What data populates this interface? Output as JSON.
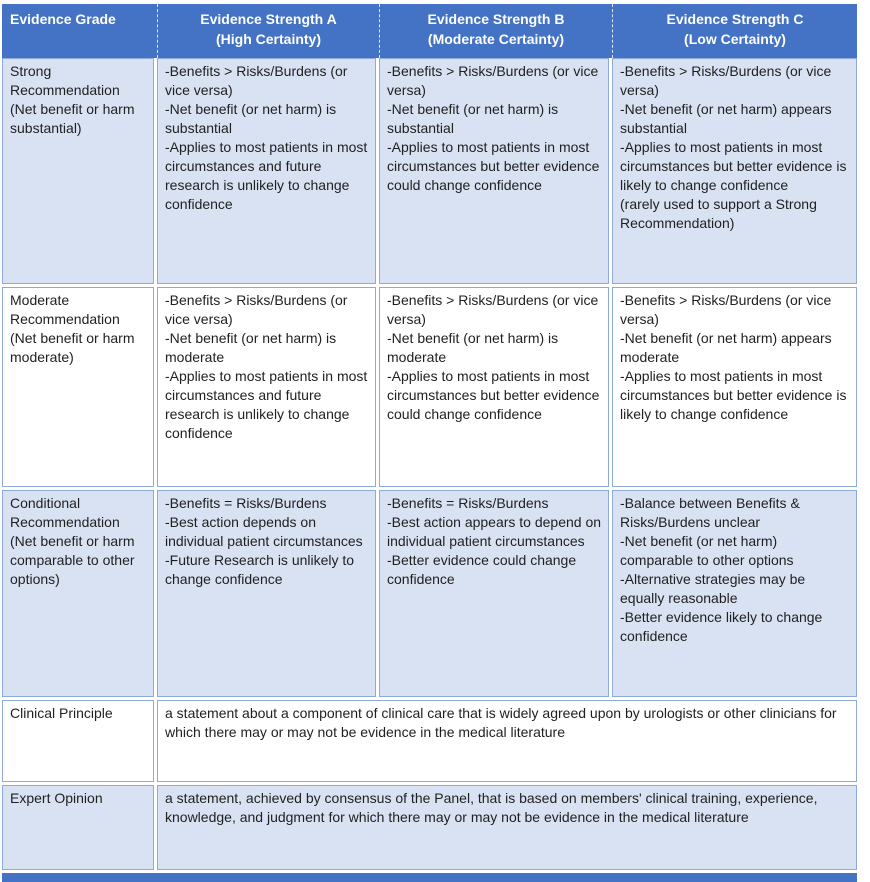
{
  "colors": {
    "header_bg": "#4472C4",
    "band_bg": "#D9E2F3",
    "white_bg": "#FFFFFF",
    "border": "#8EAADB",
    "header_text": "#FFFFFF",
    "body_text": "#1F1F1F"
  },
  "header": {
    "grade_label": "Evidence Grade",
    "strengths": [
      {
        "title": "Evidence Strength A",
        "subtitle": "(High Certainty)"
      },
      {
        "title": "Evidence Strength B",
        "subtitle": "(Moderate Certainty)"
      },
      {
        "title": "Evidence Strength C",
        "subtitle": "(Low Certainty)"
      }
    ]
  },
  "grades": [
    {
      "label": "Strong Recommendation (Net benefit or harm substantial)",
      "cells": [
        "-Benefits > Risks/Burdens (or vice versa)\n-Net benefit (or net harm) is substantial\n-Applies to most patients in most circumstances and future research is unlikely to change confidence",
        "-Benefits > Risks/Burdens (or vice versa)\n-Net benefit (or net harm) is substantial\n-Applies to most patients in most circumstances but better evidence could change confidence",
        "-Benefits > Risks/Burdens (or vice versa)\n-Net benefit (or net harm) appears substantial\n-Applies to most patients in most circumstances but better evidence is likely to change confidence\n(rarely used to support a Strong Recommendation)"
      ]
    },
    {
      "label": "Moderate Recommendation (Net benefit or harm moderate)",
      "cells": [
        "-Benefits > Risks/Burdens (or vice versa)\n-Net benefit (or net harm) is moderate\n-Applies to most patients in most circumstances and future research is unlikely to change confidence",
        "-Benefits > Risks/Burdens (or vice versa)\n-Net benefit (or net harm) is moderate\n-Applies to most patients in most circumstances but better evidence could change confidence",
        "-Benefits > Risks/Burdens (or vice versa)\n-Net benefit (or net harm) appears moderate\n-Applies to most patients in most circumstances but better evidence is likely to change confidence"
      ]
    },
    {
      "label": "Conditional Recommendation (Net benefit or harm comparable to other options)",
      "cells": [
        "-Benefits = Risks/Burdens\n-Best action depends on individual patient circumstances\n-Future Research is unlikely to change confidence",
        "-Benefits = Risks/Burdens\n-Best action appears to depend on individual patient circumstances\n-Better evidence could change confidence",
        "-Balance between Benefits & Risks/Burdens unclear\n-Net benefit (or net harm) comparable to other options\n-Alternative strategies may be equally reasonable\n-Better evidence likely to change confidence"
      ]
    }
  ],
  "definitions": [
    {
      "label": "Clinical Principle",
      "text": "a statement about a component of clinical care that is widely agreed upon by urologists or other clinicians for which there may or may not be evidence in the medical literature"
    },
    {
      "label": "Expert Opinion",
      "text": "a statement, achieved by consensus of the Panel, that is based on members' clinical training, experience, knowledge, and judgment for which there may or may not be evidence in the medical literature"
    }
  ]
}
